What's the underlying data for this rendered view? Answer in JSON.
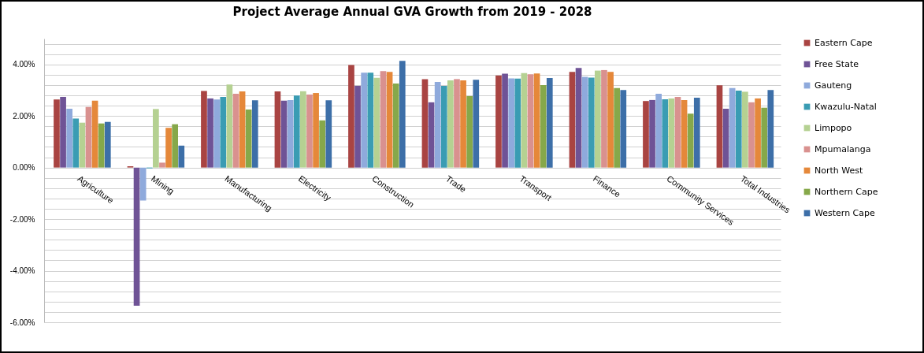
{
  "chart_data": {
    "type": "bar",
    "title": "Project Average Annual GVA Growth from 2019 - 2028",
    "categories": [
      "Agriculture",
      "Mining",
      "Manufacturing",
      "Electricity",
      "Construction",
      "Trade",
      "Transport",
      "Finance",
      "Community Services",
      "Total Industries"
    ],
    "series": [
      {
        "name": "Eastern Cape",
        "color": "#a94442",
        "values": [
          2.64,
          0.05,
          2.97,
          2.95,
          3.98,
          3.43,
          3.57,
          3.71,
          2.58,
          3.19
        ]
      },
      {
        "name": "Free State",
        "color": "#6f5396",
        "values": [
          2.74,
          -5.36,
          2.68,
          2.59,
          3.17,
          2.53,
          3.64,
          3.86,
          2.62,
          2.28
        ]
      },
      {
        "name": "Gauteng",
        "color": "#8faadc",
        "values": [
          2.28,
          -1.28,
          2.64,
          2.62,
          3.68,
          3.32,
          3.46,
          3.52,
          2.86,
          3.08
        ]
      },
      {
        "name": "Kwazulu-Natal",
        "color": "#3a9cb3",
        "values": [
          1.9,
          -0.03,
          2.74,
          2.79,
          3.68,
          3.17,
          3.45,
          3.49,
          2.65,
          2.98
        ]
      },
      {
        "name": "Limpopo",
        "color": "#b5d192",
        "values": [
          1.74,
          2.27,
          3.22,
          2.96,
          3.48,
          3.38,
          3.66,
          3.76,
          2.68,
          2.94
        ]
      },
      {
        "name": "Mpumalanga",
        "color": "#d9918f",
        "values": [
          2.35,
          0.19,
          2.86,
          2.83,
          3.74,
          3.43,
          3.62,
          3.78,
          2.74,
          2.53
        ]
      },
      {
        "name": "North West",
        "color": "#e5883a",
        "values": [
          2.59,
          1.54,
          2.95,
          2.89,
          3.71,
          3.38,
          3.65,
          3.71,
          2.62,
          2.68
        ]
      },
      {
        "name": "Northern Cape",
        "color": "#86a84a",
        "values": [
          1.71,
          1.68,
          2.25,
          1.83,
          3.26,
          2.77,
          3.2,
          3.08,
          2.09,
          2.32
        ]
      },
      {
        "name": "Western Cape",
        "color": "#3d6fa8",
        "values": [
          1.77,
          0.85,
          2.61,
          2.61,
          4.14,
          3.4,
          3.47,
          3.01,
          2.71,
          3.01
        ]
      }
    ],
    "ylim": [
      -6,
      5
    ],
    "yticks": [
      {
        "value": -6,
        "label": "-6.00%"
      },
      {
        "value": -5.6,
        "label": null
      },
      {
        "value": -5.2,
        "label": null
      },
      {
        "value": -4.8,
        "label": null
      },
      {
        "value": -4.4,
        "label": null
      },
      {
        "value": -4,
        "label": "-4.00%"
      },
      {
        "value": -3.6,
        "label": null
      },
      {
        "value": -3.2,
        "label": null
      },
      {
        "value": -2.8,
        "label": null
      },
      {
        "value": -2.4,
        "label": null
      },
      {
        "value": -2,
        "label": "-2.00%"
      },
      {
        "value": -1.6,
        "label": null
      },
      {
        "value": -1.2,
        "label": null
      },
      {
        "value": -0.8,
        "label": null
      },
      {
        "value": -0.4,
        "label": null
      },
      {
        "value": 0,
        "label": "0.00%"
      },
      {
        "value": 0.4,
        "label": null
      },
      {
        "value": 0.8,
        "label": null
      },
      {
        "value": 1.2,
        "label": null
      },
      {
        "value": 1.6,
        "label": null
      },
      {
        "value": 2,
        "label": "2.00%"
      },
      {
        "value": 2.4,
        "label": null
      },
      {
        "value": 2.8,
        "label": null
      },
      {
        "value": 3.2,
        "label": null
      },
      {
        "value": 3.6,
        "label": null
      },
      {
        "value": 4,
        "label": "4.00%"
      },
      {
        "value": 4.4,
        "label": null
      },
      {
        "value": 4.8,
        "label": null
      }
    ],
    "grid": true,
    "legend": "right"
  }
}
